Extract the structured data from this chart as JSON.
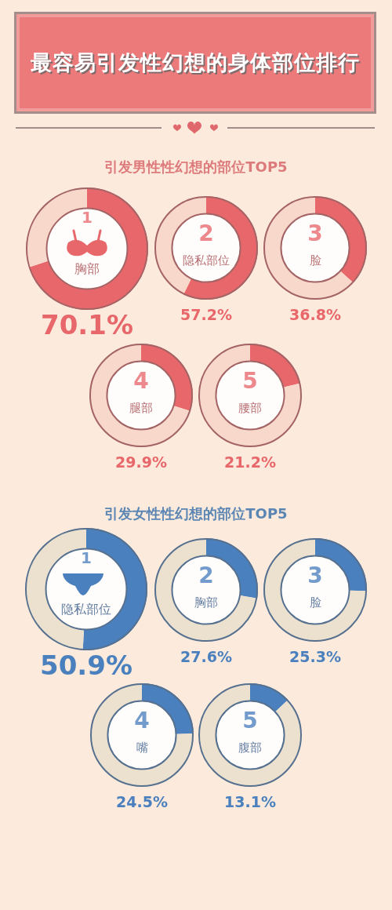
{
  "chart_data": [
    {
      "type": "other",
      "title": "最容易引发性幻想的身体部位排行"
    },
    {
      "type": "other",
      "title": "引发男性性幻想的部位TOP5"
    },
    {
      "type": "donut",
      "title": "胸部",
      "categories": [
        null,
        null
      ],
      "values": [
        70.1,
        29.9
      ],
      "colors": [
        "#e8676b",
        "#f7d8cb"
      ],
      "annotations": [
        "70.1%",
        "1"
      ]
    },
    {
      "type": "donut",
      "title": "隐私部位",
      "categories": [
        null,
        null
      ],
      "values": [
        57.2,
        42.8
      ],
      "colors": [
        "#e8676b",
        "#f7d8cb"
      ],
      "annotations": [
        "57.2%",
        "2"
      ]
    },
    {
      "type": "donut",
      "title": "脸",
      "categories": [
        null,
        null
      ],
      "values": [
        36.8,
        63.2
      ],
      "colors": [
        "#e8676b",
        "#f7d8cb"
      ],
      "annotations": [
        "36.8%",
        "3"
      ]
    },
    {
      "type": "donut",
      "title": "腿部",
      "categories": [
        null,
        null
      ],
      "values": [
        29.9,
        70.1
      ],
      "colors": [
        "#e8676b",
        "#f7d8cb"
      ],
      "annotations": [
        "29.9%",
        "4"
      ]
    },
    {
      "type": "donut",
      "title": "腰部",
      "categories": [
        null,
        null
      ],
      "values": [
        21.2,
        78.8
      ],
      "colors": [
        "#e8676b",
        "#f7d8cb"
      ],
      "annotations": [
        "21.2%",
        "5"
      ]
    },
    {
      "type": "other",
      "title": "引发女性性幻想的部位TOP5"
    },
    {
      "type": "donut",
      "title": "隐私部位",
      "categories": [
        null,
        null
      ],
      "values": [
        50.9,
        49.1
      ],
      "colors": [
        "#4b80be",
        "#ece1cf"
      ],
      "annotations": [
        "50.9%",
        "1"
      ]
    },
    {
      "type": "donut",
      "title": "胸部",
      "categories": [
        null,
        null
      ],
      "values": [
        27.6,
        72.4
      ],
      "colors": [
        "#4b80be",
        "#ece1cf"
      ],
      "annotations": [
        "27.6%",
        "2"
      ]
    },
    {
      "type": "donut",
      "title": "脸",
      "categories": [
        null,
        null
      ],
      "values": [
        25.3,
        74.7
      ],
      "colors": [
        "#4b80be",
        "#ece1cf"
      ],
      "annotations": [
        "25.3%",
        "3"
      ]
    },
    {
      "type": "donut",
      "title": "嘴",
      "categories": [
        null,
        null
      ],
      "values": [
        24.5,
        75.5
      ],
      "colors": [
        "#4b80be",
        "#ece1cf"
      ],
      "annotations": [
        "24.5%",
        "4"
      ]
    },
    {
      "type": "donut",
      "title": "腹部",
      "categories": [
        null,
        null
      ],
      "values": [
        13.1,
        86.9
      ],
      "colors": [
        "#4b80be",
        "#ece1cf"
      ],
      "annotations": [
        "13.1%",
        "5"
      ]
    }
  ]
}
